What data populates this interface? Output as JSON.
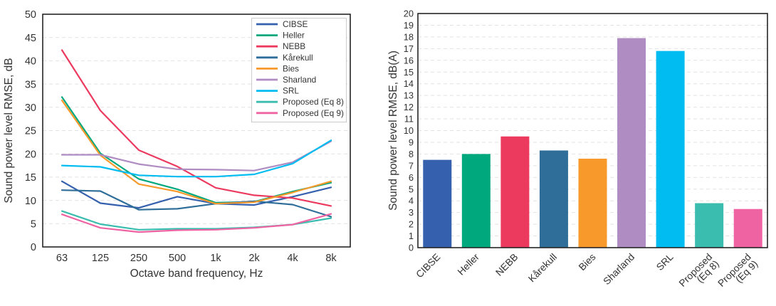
{
  "figure": {
    "background": "#ffffff"
  },
  "chart_data": [
    {
      "type": "line",
      "title": "",
      "xlabel": "Octave band frequency, Hz",
      "ylabel": "Sound power level RMSE, dB",
      "categories": [
        "63",
        "125",
        "250",
        "500",
        "1k",
        "2k",
        "4k",
        "8k"
      ],
      "ylim": [
        0,
        50
      ],
      "ytick_step": 5,
      "grid": "horizontal dashed",
      "legend_position": "upper right inside",
      "series": [
        {
          "name": "CIBSE",
          "color": "#3560AE",
          "values": [
            14.1,
            9.4,
            8.4,
            10.8,
            9.3,
            9.0,
            10.8,
            12.8
          ]
        },
        {
          "name": "Heller",
          "color": "#00A87E",
          "values": [
            32.2,
            20.1,
            14.6,
            12.4,
            9.5,
            9.7,
            11.9,
            13.8
          ]
        },
        {
          "name": "NEBB",
          "color": "#EC3A5F",
          "values": [
            42.3,
            29.3,
            20.8,
            17.3,
            12.7,
            11.1,
            10.5,
            8.8
          ]
        },
        {
          "name": "Kårekull",
          "color": "#2F6E99",
          "values": [
            12.2,
            12.0,
            8.0,
            8.2,
            9.3,
            9.8,
            9.1,
            6.5
          ]
        },
        {
          "name": "Bies",
          "color": "#F8992B",
          "values": [
            31.5,
            19.7,
            13.5,
            11.9,
            9.3,
            9.6,
            11.7,
            14.1
          ]
        },
        {
          "name": "Sharland",
          "color": "#AF8DC3",
          "values": [
            19.8,
            19.8,
            17.8,
            16.7,
            16.6,
            16.4,
            18.2,
            22.7
          ]
        },
        {
          "name": "SRL",
          "color": "#00BCF1",
          "values": [
            17.5,
            17.2,
            15.4,
            15.1,
            15.1,
            15.6,
            17.9,
            22.9
          ]
        },
        {
          "name": "Proposed (Eq 8)",
          "color": "#3ABDAF",
          "values": [
            7.7,
            4.9,
            3.7,
            3.9,
            3.9,
            4.2,
            4.8,
            6.2
          ]
        },
        {
          "name": "Proposed (Eq 9)",
          "color": "#EF63A2",
          "values": [
            7.0,
            4.1,
            3.2,
            3.6,
            3.7,
            4.1,
            4.8,
            7.1
          ]
        }
      ]
    },
    {
      "type": "bar",
      "title": "",
      "xlabel": "",
      "ylabel": "Sound power level RMSE, dB(A)",
      "categories": [
        "CIBSE",
        "Heller",
        "NEBB",
        "Kårekull",
        "Bies",
        "Sharland",
        "SRL",
        "Proposed (Eq 8)",
        "Proposed (Eq 9)"
      ],
      "category_lines": [
        [
          "CIBSE"
        ],
        [
          "Heller"
        ],
        [
          "NEBB"
        ],
        [
          "Kårekull"
        ],
        [
          "Bies"
        ],
        [
          "Sharland"
        ],
        [
          "SRL"
        ],
        [
          "Proposed",
          "(Eq 8)"
        ],
        [
          "Proposed",
          "(Eq 9)"
        ]
      ],
      "values": [
        7.5,
        8.0,
        9.5,
        8.3,
        7.6,
        17.9,
        16.8,
        3.8,
        3.3
      ],
      "colors": [
        "#3560AE",
        "#00A87E",
        "#EC3A5F",
        "#2F6E99",
        "#F8992B",
        "#AF8DC3",
        "#00BCF1",
        "#3ABDAF",
        "#EF63A2"
      ],
      "ylim": [
        0,
        20
      ],
      "ytick_step": 1,
      "xtick_rotation_deg": 45,
      "grid": "horizontal dashed"
    }
  ]
}
